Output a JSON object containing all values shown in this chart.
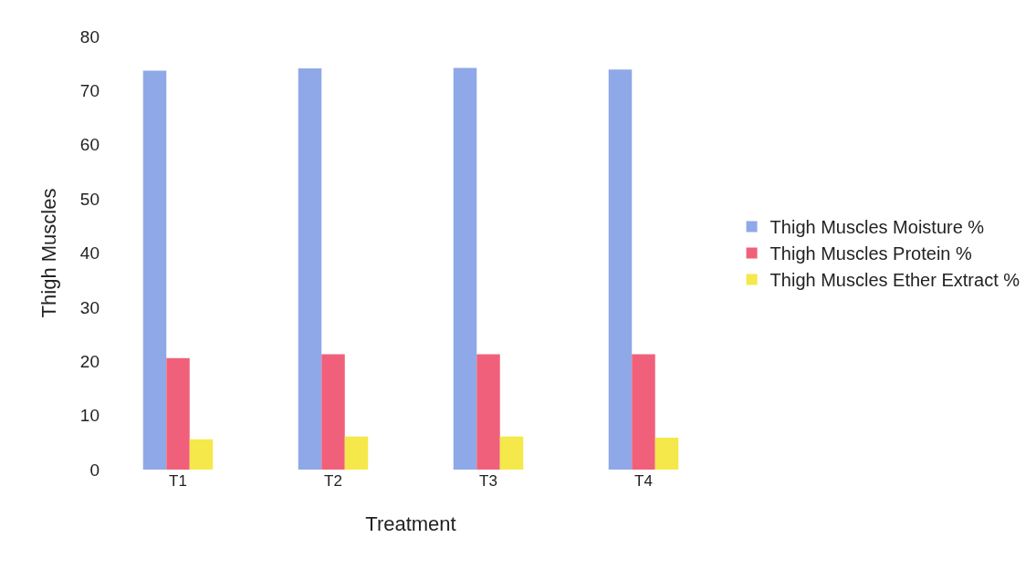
{
  "chart_data": {
    "type": "bar",
    "xlabel": "Treatment",
    "ylabel": "Thigh Muscles",
    "categories": [
      "T1",
      "T2",
      "T3",
      "T4"
    ],
    "series": [
      {
        "name": "Thigh Muscles Moisture %",
        "color": "#8fa8e8",
        "values": [
          73.7,
          74.1,
          74.2,
          73.9
        ]
      },
      {
        "name": "Thigh Muscles Protein %",
        "color": "#f0607a",
        "values": [
          20.6,
          21.3,
          21.3,
          21.3
        ]
      },
      {
        "name": "Thigh Muscles Ether Extract %",
        "color": "#f5e84a",
        "values": [
          5.6,
          6.1,
          6.1,
          5.9
        ]
      }
    ],
    "ylim": [
      0,
      80
    ],
    "yticks": [
      0,
      10,
      20,
      30,
      40,
      50,
      60,
      70,
      80
    ],
    "grid": false,
    "legend": "right"
  }
}
